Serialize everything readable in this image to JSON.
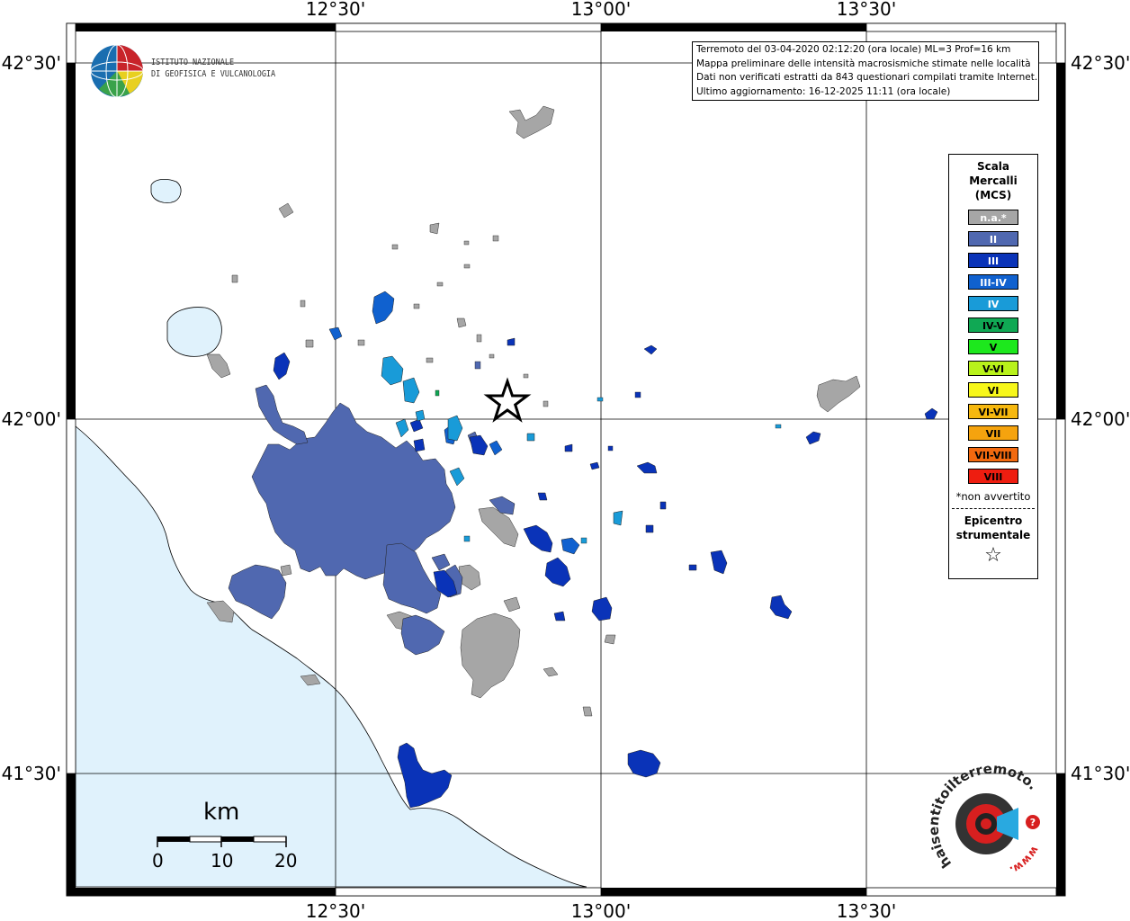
{
  "map": {
    "lon_labels": [
      "12°30'",
      "13°00'",
      "13°30'"
    ],
    "lat_labels": [
      "42°30'",
      "42°00'",
      "41°30'"
    ]
  },
  "info": {
    "line1": "Terremoto del 03-04-2020 02:12:20 (ora locale) ML=3 Prof=16 km",
    "line2": "Mappa preliminare delle intensità macrosismiche stimate nelle località",
    "line3": "Dati non verificati estratti da 843 questionari compilati tramite Internet.",
    "line4": "Ultimo aggiornamento: 16-12-2025 11:11 (ora locale)"
  },
  "logo_ingv": {
    "line1": "ISTITUTO NAZIONALE",
    "line2": "DI GEOFISICA E VULCANOLOGIA"
  },
  "legend": {
    "title1": "Scala",
    "title2": "Mercalli",
    "title3": "(MCS)",
    "items": [
      {
        "label": "n.a.*",
        "color": "#a6a6a6"
      },
      {
        "label": "II",
        "color": "#5068b0"
      },
      {
        "label": "III",
        "color": "#0a33b8"
      },
      {
        "label": "III-IV",
        "color": "#1061cf"
      },
      {
        "label": "IV",
        "color": "#199bd8"
      },
      {
        "label": "IV-V",
        "color": "#10a854"
      },
      {
        "label": "V",
        "color": "#1de81d"
      },
      {
        "label": "V-VI",
        "color": "#b8f21b"
      },
      {
        "label": "VI",
        "color": "#f7f71a"
      },
      {
        "label": "VI-VII",
        "color": "#f6b80f"
      },
      {
        "label": "VII",
        "color": "#f5a30e"
      },
      {
        "label": "VII-VIII",
        "color": "#f2690f"
      },
      {
        "label": "VIII",
        "color": "#ee1d10"
      }
    ],
    "note": "*non avvertito",
    "epi1": "Epicentro",
    "epi2": "strumentale",
    "star": "☆"
  },
  "scalebar": {
    "unit": "km",
    "ticks": [
      "0",
      "10",
      "20"
    ]
  },
  "hsit_logo": {
    "text": "haisentitoilterremoto.it",
    "www": "www."
  },
  "colors": {
    "sea": "#e0f2fc",
    "lake": "#e0f2fc",
    "na": "#a6a6a6",
    "ii": "#5068b0",
    "iii": "#0a33b8",
    "iii_iv": "#1061cf",
    "iv": "#199bd8"
  }
}
